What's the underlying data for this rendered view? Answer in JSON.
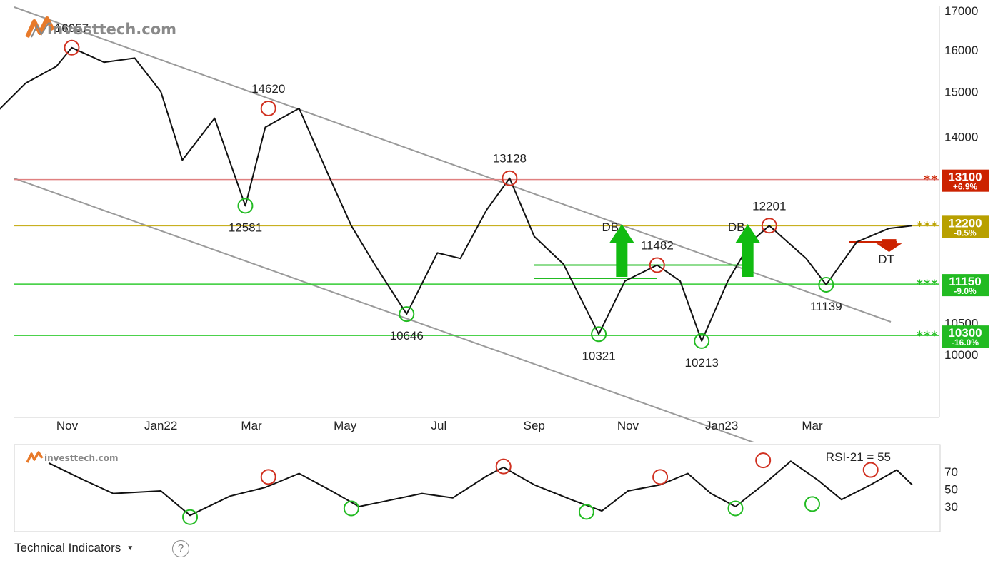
{
  "brand": {
    "name": "investtech.com"
  },
  "chart_data": [
    {
      "type": "line",
      "series": [
        {
          "x": [
            "2021-09-15",
            "2021-10-05",
            "2021-10-25",
            "2021-11-04",
            "2021-11-25",
            "2021-12-15",
            "2022-01-01",
            "2022-01-15",
            "2022-02-05",
            "2022-02-25",
            "2022-03-10",
            "2022-04-01",
            "2022-04-20",
            "2022-05-05",
            "2022-05-20",
            "2022-06-10",
            "2022-06-30",
            "2022-07-15",
            "2022-08-01",
            "2022-08-16",
            "2022-09-01",
            "2022-09-20",
            "2022-10-13",
            "2022-10-30",
            "2022-11-20",
            "2022-12-05",
            "2022-12-19",
            "2023-01-05",
            "2023-01-20",
            "2023-02-01",
            "2023-02-25",
            "2023-03-10",
            "2023-03-30",
            "2023-04-20",
            "2023-05-05"
          ],
          "values": [
            14500,
            15200,
            15600,
            16057,
            15700,
            15800,
            15000,
            13500,
            14400,
            12581,
            14200,
            14620,
            13200,
            12200,
            11500,
            10646,
            11700,
            11600,
            12500,
            13128,
            12000,
            11500,
            10321,
            11200,
            11482,
            11200,
            10213,
            11200,
            11900,
            12201,
            11600,
            11139,
            11900,
            12150,
            12200
          ]
        }
      ],
      "xtick_labels": [
        "Nov",
        "Jan22",
        "Mar",
        "May",
        "Jul",
        "Sep",
        "Nov",
        "Jan23",
        "Mar"
      ],
      "xtick_values": [
        "2021-11-01",
        "2022-01-01",
        "2022-03-01",
        "2022-05-01",
        "2022-07-01",
        "2022-09-01",
        "2022-11-01",
        "2023-01-01",
        "2023-03-01"
      ],
      "ytick_labels": [
        "10000",
        "10500",
        "14000",
        "15000",
        "16000",
        "17000"
      ],
      "ytick_values": [
        10000,
        10500,
        14000,
        15000,
        16000,
        17000
      ],
      "yscale": "log",
      "ylim": [
        8700,
        17000
      ],
      "grid": false,
      "annotations": [
        {
          "text": "16057",
          "x": "2021-11-04",
          "y": 16057,
          "marker": "top"
        },
        {
          "text": "14620",
          "x": "2022-03-12",
          "y": 14620,
          "marker": "top"
        },
        {
          "text": "12581",
          "x": "2022-02-25",
          "y": 12581,
          "marker": "bottom"
        },
        {
          "text": "13128",
          "x": "2022-08-16",
          "y": 13128,
          "marker": "top"
        },
        {
          "text": "10646",
          "x": "2022-06-10",
          "y": 10646,
          "marker": "bottom"
        },
        {
          "text": "10321",
          "x": "2022-10-13",
          "y": 10321,
          "marker": "bottom"
        },
        {
          "text": "11482",
          "x": "2022-11-20",
          "y": 11482,
          "marker": "top"
        },
        {
          "text": "10213",
          "x": "2022-12-19",
          "y": 10213,
          "marker": "bottom"
        },
        {
          "text": "12201",
          "x": "2023-02-01",
          "y": 12201,
          "marker": "top"
        },
        {
          "text": "11139",
          "x": "2023-03-10",
          "y": 11139,
          "marker": "bottom"
        }
      ],
      "patterns": [
        {
          "text": "DB",
          "x": "2022-10-28",
          "direction": "up"
        },
        {
          "text": "DB",
          "x": "2023-01-18",
          "direction": "up"
        },
        {
          "text": "DT",
          "x": "2023-04-20",
          "direction": "down"
        }
      ],
      "levels": [
        {
          "value": 13100,
          "stars": "**",
          "change": "+6.9%",
          "color": "#cc2200",
          "line_color": "#e08080"
        },
        {
          "value": 12200,
          "stars": "***",
          "change": "-0.5%",
          "color": "#b8a000",
          "line_color": "#c8b020"
        },
        {
          "value": 11150,
          "stars": "***",
          "change": "-9.0%",
          "color": "#22bb22",
          "line_color": "#33cc33"
        },
        {
          "value": 10300,
          "stars": "***",
          "change": "-16.0%",
          "color": "#22bb22",
          "line_color": "#33cc33"
        }
      ]
    },
    {
      "type": "line",
      "title": "RSI-21 = 55",
      "series": [
        {
          "x": [
            "2021-10-20",
            "2021-11-10",
            "2021-12-01",
            "2022-01-01",
            "2022-01-20",
            "2022-02-15",
            "2022-03-10",
            "2022-04-01",
            "2022-04-20",
            "2022-05-10",
            "2022-06-01",
            "2022-06-20",
            "2022-07-10",
            "2022-08-01",
            "2022-08-12",
            "2022-09-01",
            "2022-09-25",
            "2022-10-15",
            "2022-11-01",
            "2022-11-22",
            "2022-12-10",
            "2022-12-25",
            "2023-01-10",
            "2023-01-28",
            "2023-02-15",
            "2023-03-05",
            "2023-03-20",
            "2023-04-08",
            "2023-04-25",
            "2023-05-05"
          ],
          "values": [
            80,
            62,
            45,
            48,
            20,
            42,
            52,
            68,
            50,
            30,
            38,
            45,
            40,
            65,
            75,
            55,
            38,
            25,
            48,
            55,
            68,
            45,
            30,
            55,
            82,
            60,
            38,
            55,
            72,
            55
          ]
        }
      ],
      "ytick_labels": [
        "30",
        "50",
        "70"
      ],
      "ytick_values": [
        30,
        50,
        70
      ],
      "ylim": [
        0,
        100
      ],
      "markers_top": [
        {
          "x": "2022-03-12",
          "y": 64
        },
        {
          "x": "2022-08-12",
          "y": 76
        },
        {
          "x": "2022-11-22",
          "y": 64
        },
        {
          "x": "2023-01-28",
          "y": 83
        },
        {
          "x": "2023-04-08",
          "y": 72
        }
      ],
      "markers_bottom": [
        {
          "x": "2022-01-20",
          "y": 18
        },
        {
          "x": "2022-05-05",
          "y": 28
        },
        {
          "x": "2022-10-05",
          "y": 24
        },
        {
          "x": "2023-01-10",
          "y": 28
        },
        {
          "x": "2023-03-01",
          "y": 33
        }
      ]
    }
  ],
  "toolbar": {
    "technical_indicators": "Technical Indicators",
    "help": "?"
  }
}
